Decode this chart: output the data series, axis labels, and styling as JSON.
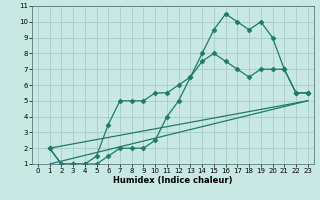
{
  "xlabel": "Humidex (Indice chaleur)",
  "xlim": [
    -0.5,
    23.5
  ],
  "ylim": [
    1,
    11
  ],
  "xticks": [
    0,
    1,
    2,
    3,
    4,
    5,
    6,
    7,
    8,
    9,
    10,
    11,
    12,
    13,
    14,
    15,
    16,
    17,
    18,
    19,
    20,
    21,
    22,
    23
  ],
  "yticks": [
    1,
    2,
    3,
    4,
    5,
    6,
    7,
    8,
    9,
    10,
    11
  ],
  "background_color": "#c8e8e4",
  "grid_color": "#a8cccc",
  "line_color": "#1e7a6a",
  "lines": [
    {
      "x": [
        1,
        2,
        3,
        4,
        5,
        6,
        7,
        8,
        9,
        10,
        11,
        12,
        13,
        14,
        15,
        16,
        17,
        18,
        19,
        20,
        21,
        22,
        23
      ],
      "y": [
        2,
        1,
        1,
        1,
        1,
        1.5,
        2,
        2,
        2,
        2.5,
        4,
        5,
        6.5,
        8,
        9.5,
        10.5,
        10,
        9.5,
        10,
        9,
        7,
        5.5,
        5.5
      ],
      "marked": true
    },
    {
      "x": [
        1,
        2,
        3,
        4,
        5,
        6,
        7,
        8,
        9,
        10,
        11,
        12,
        13,
        14,
        15,
        16,
        17,
        18,
        19,
        20,
        21,
        22,
        23
      ],
      "y": [
        2,
        1,
        1,
        1,
        1.5,
        3.5,
        5,
        5,
        5,
        5.5,
        5.5,
        6,
        6.5,
        7.5,
        8,
        7.5,
        7,
        6.5,
        7,
        7,
        7,
        5.5,
        5.5
      ],
      "marked": true
    },
    {
      "x": [
        1,
        23
      ],
      "y": [
        1,
        5
      ],
      "marked": false
    },
    {
      "x": [
        1,
        23
      ],
      "y": [
        2,
        5
      ],
      "marked": false
    }
  ],
  "marker": "D",
  "marker_size": 2.5,
  "line_width": 0.9,
  "tick_fontsize": 5,
  "xlabel_fontsize": 6,
  "xlabel_bold": true
}
